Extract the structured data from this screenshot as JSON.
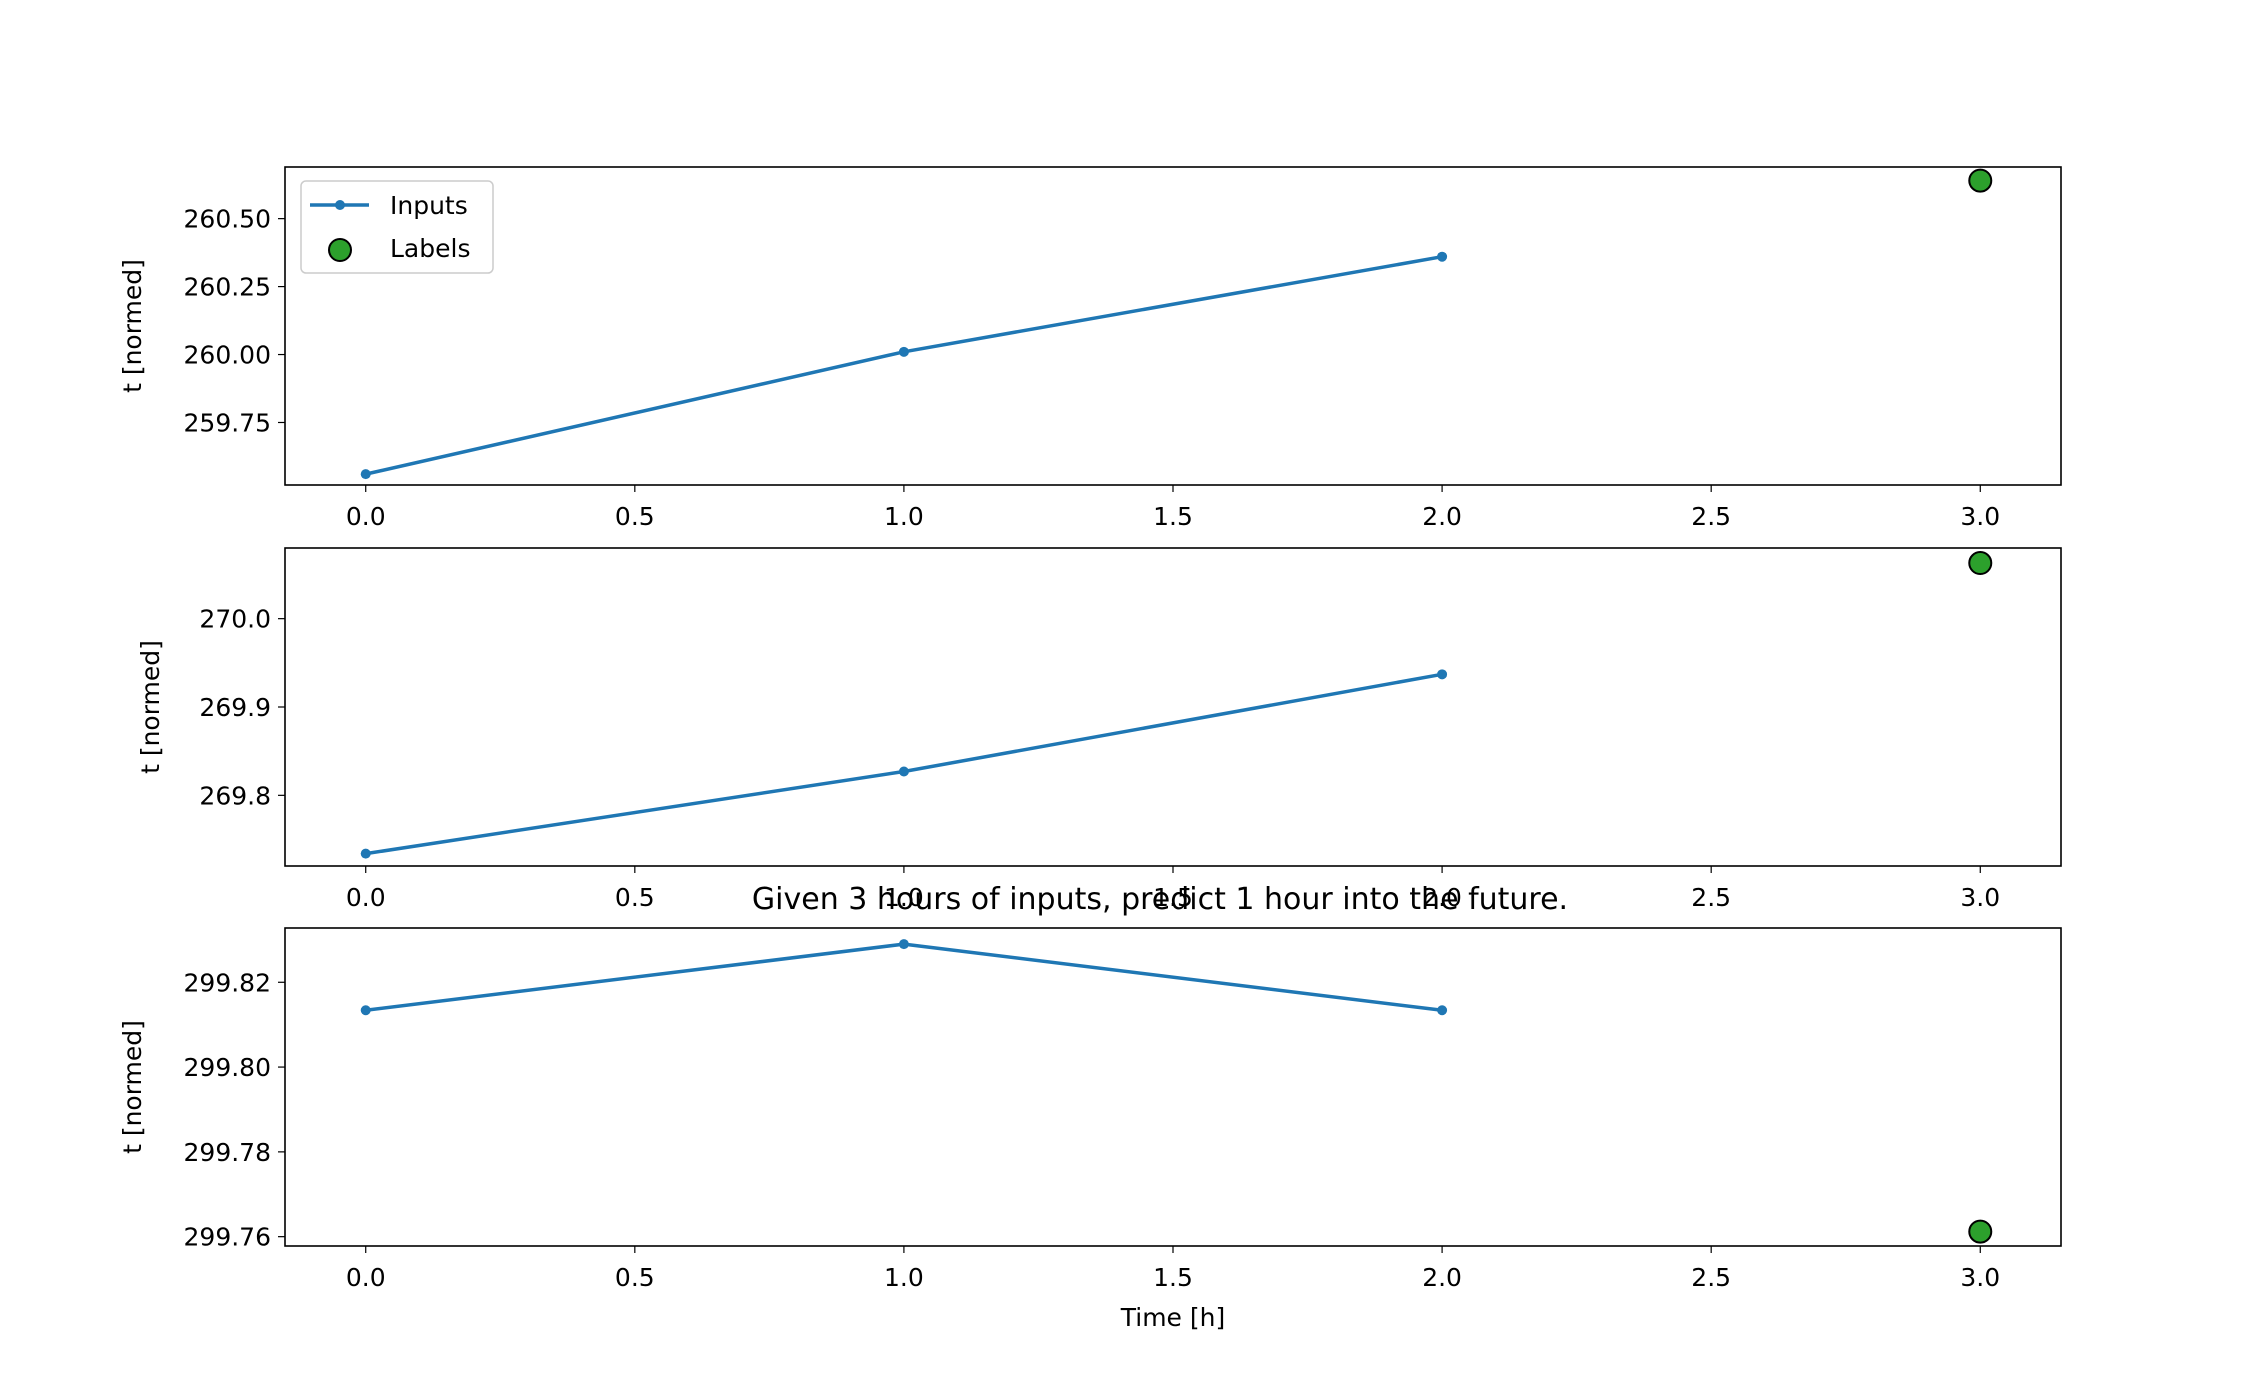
{
  "figure_title": "Given 3 hours of inputs, predict 1 hour into the future.",
  "colors": {
    "inputs": "#1f77b4",
    "labels": "#2ca02c",
    "label_edge": "#000000",
    "axes": "#000000"
  },
  "chart_data": [
    {
      "type": "line",
      "ylabel": "t [normed]",
      "xlabel": "",
      "xlim": [
        -0.15,
        3.15
      ],
      "ylim": [
        259.52,
        260.69
      ],
      "xticks": [
        "0.0",
        "0.5",
        "1.0",
        "1.5",
        "2.0",
        "2.5",
        "3.0"
      ],
      "yticks": [
        "259.75",
        "260.00",
        "260.25",
        "260.50"
      ],
      "legend": {
        "position": "upper-left",
        "entries": [
          "Inputs",
          "Labels"
        ]
      },
      "series": [
        {
          "name": "Inputs",
          "kind": "line-marker",
          "x": [
            0,
            1,
            2
          ],
          "y": [
            259.56,
            260.01,
            260.36
          ]
        },
        {
          "name": "Labels",
          "kind": "scatter",
          "x": [
            3
          ],
          "y": [
            260.64
          ]
        }
      ]
    },
    {
      "type": "line",
      "ylabel": "t [normed]",
      "xlabel": "",
      "xlim": [
        -0.15,
        3.15
      ],
      "ylim": [
        269.72,
        270.08
      ],
      "xticks": [
        "0.0",
        "0.5",
        "1.0",
        "1.5",
        "2.0",
        "2.5",
        "3.0"
      ],
      "yticks": [
        "269.8",
        "269.9",
        "270.0"
      ],
      "series": [
        {
          "name": "Inputs",
          "kind": "line-marker",
          "x": [
            0,
            1,
            2
          ],
          "y": [
            269.734,
            269.827,
            269.937
          ]
        },
        {
          "name": "Labels",
          "kind": "scatter",
          "x": [
            3
          ],
          "y": [
            270.063
          ]
        }
      ]
    },
    {
      "type": "line",
      "ylabel": "t [normed]",
      "xlabel": "Time [h]",
      "xlim": [
        -0.15,
        3.15
      ],
      "ylim": [
        299.7578,
        299.8328
      ],
      "xticks": [
        "0.0",
        "0.5",
        "1.0",
        "1.5",
        "2.0",
        "2.5",
        "3.0"
      ],
      "yticks": [
        "299.76",
        "299.78",
        "299.80",
        "299.82"
      ],
      "series": [
        {
          "name": "Inputs",
          "kind": "line-marker",
          "x": [
            0,
            1,
            2
          ],
          "y": [
            299.8134,
            299.829,
            299.8134
          ]
        },
        {
          "name": "Labels",
          "kind": "scatter",
          "x": [
            3
          ],
          "y": [
            299.7612
          ]
        }
      ]
    }
  ]
}
